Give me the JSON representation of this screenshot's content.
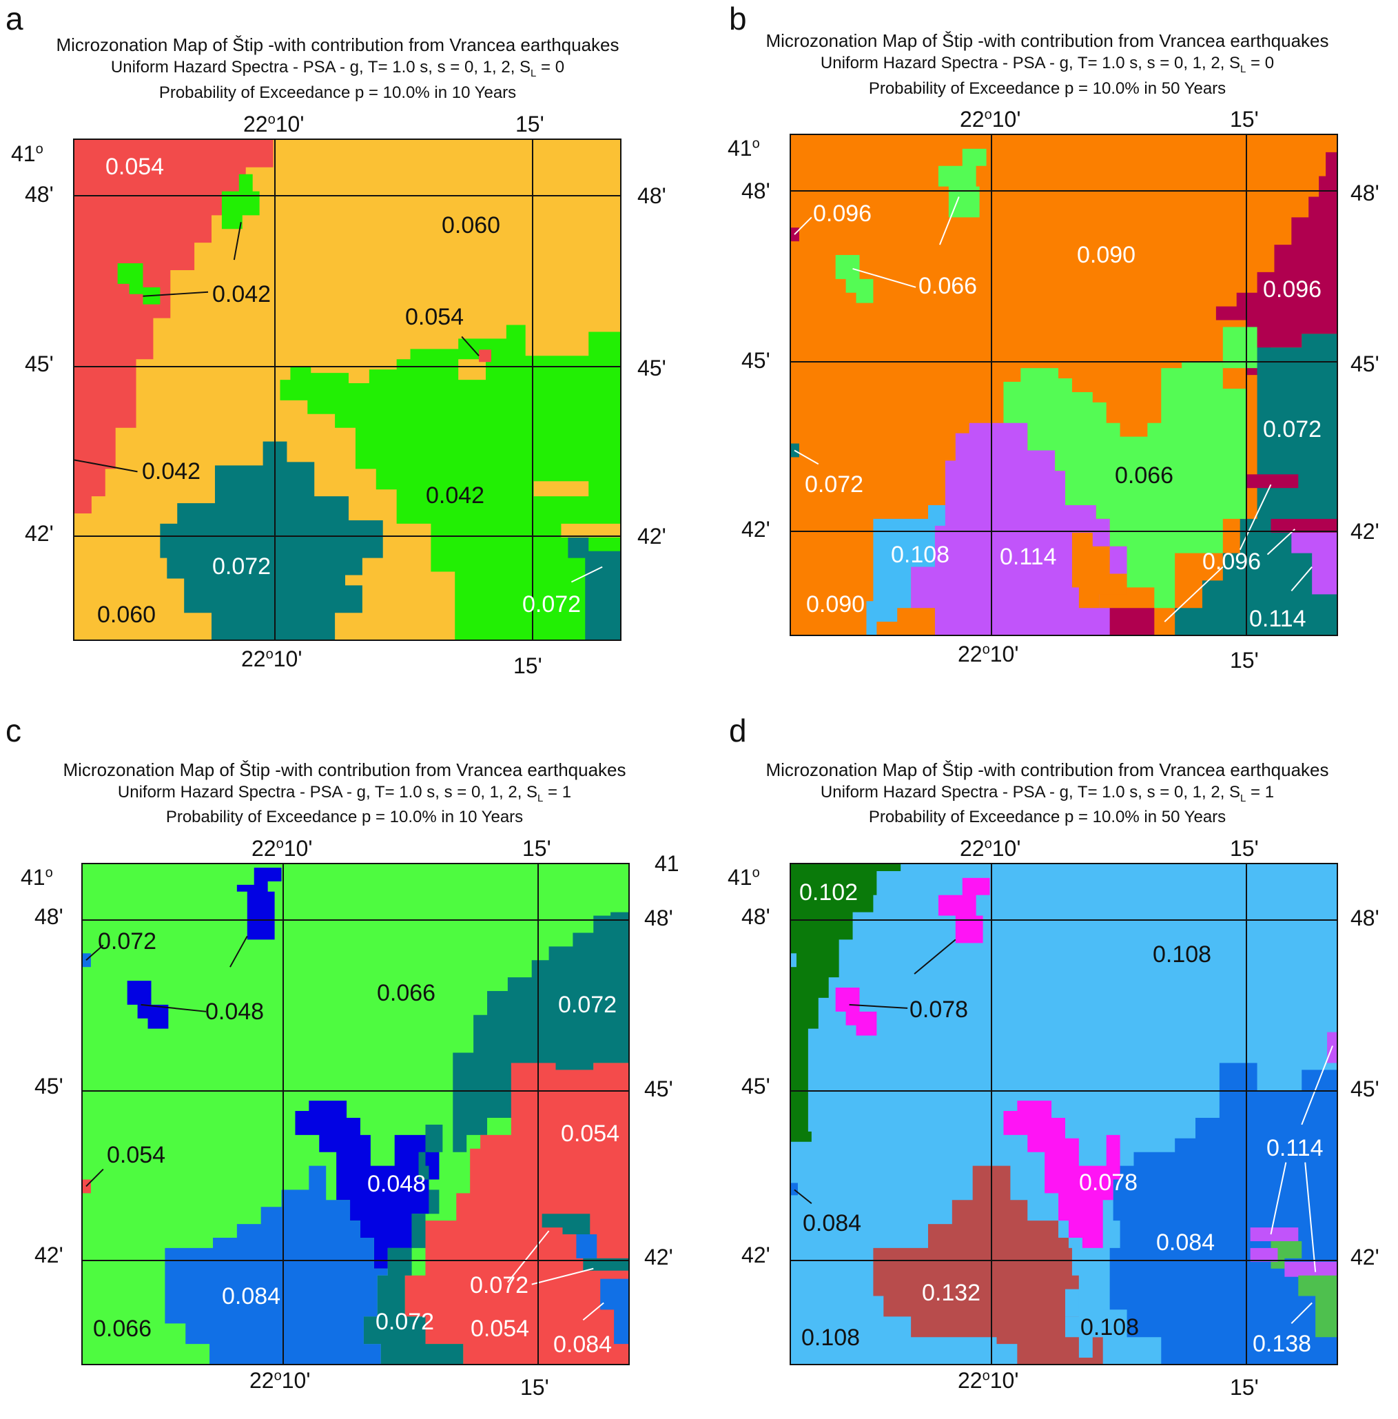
{
  "common": {
    "title_line1": "Microzonation Map of Štip -with contribution from Vrancea earthquakes",
    "lon_top_1": "22°10'",
    "lon_top_2": "15'",
    "lat_41": "41°",
    "lat_48": "48'",
    "lat_45": "45'",
    "lat_42": "42'"
  },
  "panels": [
    {
      "letter": "a",
      "title2_prefix": "Uniform Hazard Spectra - PSA - g,  T= 1.0 s,  s = 0, 1, 2,  S",
      "title2_sub": "L",
      "title2_suffix": " = 0",
      "title3": "Probability of Exceedance p = 10.0%  in  10 Years",
      "colors": {
        "red": "#f24b4b",
        "yellow": "#fbc134",
        "green": "#22ef04",
        "teal": "#057a7a"
      },
      "labels": [
        "0.054",
        "0.060",
        "0.042",
        "0.054",
        "0.042",
        "0.042",
        "0.072",
        "0.060",
        "0.072"
      ]
    },
    {
      "letter": "b",
      "title2_prefix": "Uniform Hazard Spectra - PSA - g,  T= 1.0 s,  s = 0, 1, 2,  S",
      "title2_sub": "L",
      "title2_suffix": " = 0",
      "title3": "Probability of Exceedance p = 10.0%  in  50 Years",
      "colors": {
        "orange": "#fb7f00",
        "green": "#54fb54",
        "maroon": "#b0004f",
        "teal": "#057a7a",
        "lightblue": "#44bbf7",
        "purple": "#c154fa"
      },
      "labels": [
        "0.096",
        "0.066",
        "0.090",
        "0.096",
        "0.072",
        "0.072",
        "0.066",
        "0.108",
        "0.114",
        "0.096",
        "0.090",
        "0.114"
      ]
    },
    {
      "letter": "c",
      "title2_prefix": "Uniform Hazard Spectra - PSA - g,  T= 1.0 s,  s = 0, 1, 2,  S",
      "title2_sub": "L",
      "title2_suffix": " = 1",
      "title3": "Probability of Exceedance p = 10.0%  in  10 Years",
      "extra_tick": "41",
      "colors": {
        "green": "#4efb40",
        "blue": "#0202e3",
        "teal": "#057a7a",
        "red": "#f44b4b",
        "midblue": "#1170e6"
      },
      "labels": [
        "0.072",
        "0.048",
        "0.066",
        "0.072",
        "0.054",
        "0.054",
        "0.048",
        "0.084",
        "0.072",
        "0.072",
        "0.054",
        "0.066",
        "0.084"
      ]
    },
    {
      "letter": "d",
      "title2_prefix": "Uniform Hazard Spectra - PSA - g,  T= 1.0 s,  s = 0, 1, 2,  S",
      "title2_sub": "L",
      "title2_suffix": " = 1",
      "title3": "Probability of Exceedance p = 10.0%  in  50 Years",
      "colors": {
        "lightblue": "#4cbdf7",
        "darkgreen": "#0a7a0a",
        "magenta": "#ff14f5",
        "midblue": "#1170e6",
        "brown": "#b84c4c",
        "purple": "#c154fa",
        "green": "#4ec04e"
      },
      "labels": [
        "0.102",
        "0.078",
        "0.108",
        "0.114",
        "0.084",
        "0.078",
        "0.084",
        "0.132",
        "0.108",
        "0.108",
        "0.138"
      ]
    }
  ]
}
